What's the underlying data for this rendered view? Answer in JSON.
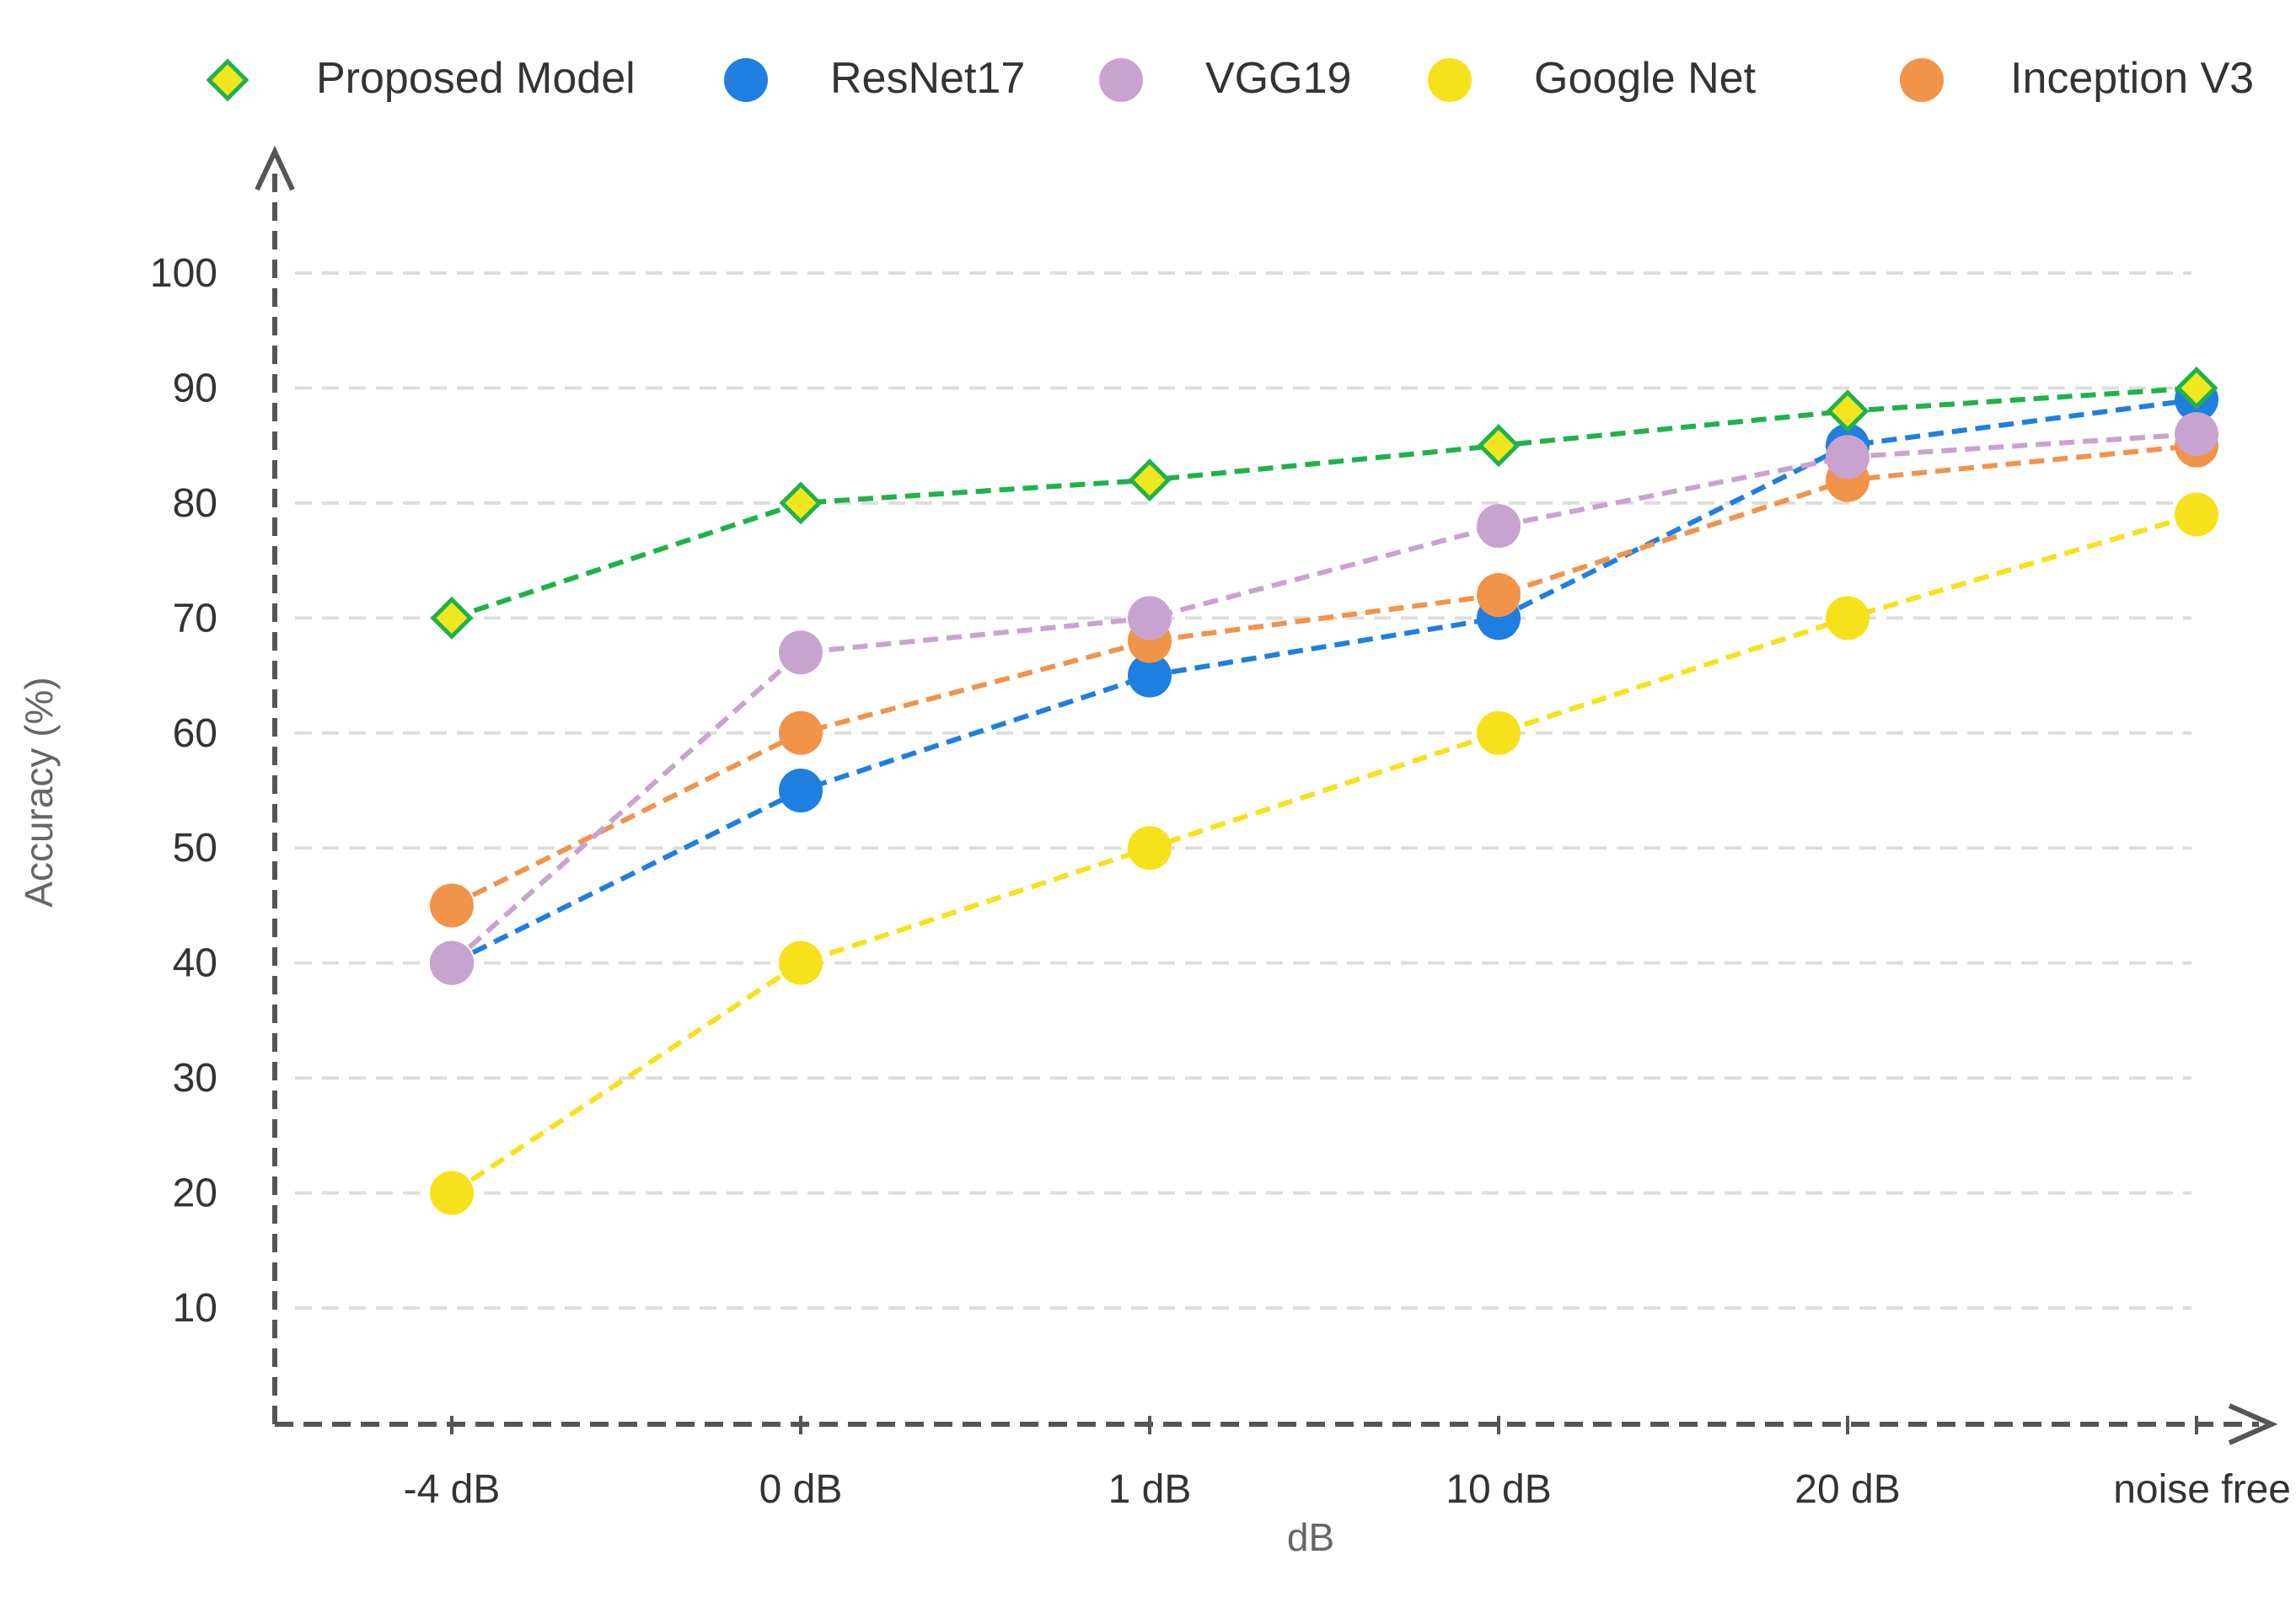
{
  "chart_data": {
    "type": "line",
    "title": "",
    "xlabel": "dB",
    "ylabel": "Accuracy (%)",
    "categories": [
      "-4 dB",
      "0 dB",
      "1 dB",
      "10 dB",
      "20 dB",
      "noise free"
    ],
    "yticks": [
      10,
      20,
      30,
      40,
      50,
      60,
      70,
      80,
      90,
      100
    ],
    "ylim": [
      0,
      110
    ],
    "grid": true,
    "legend_position": "top",
    "series": [
      {
        "name": "Proposed Model",
        "color": "#1fb24a",
        "fill": "#f2e61f",
        "marker": "diamond",
        "values": [
          70,
          80,
          82,
          85,
          88,
          90
        ]
      },
      {
        "name": "ResNet17",
        "color": "#1f7fe0",
        "marker": "circle",
        "values": [
          40,
          55,
          65,
          70,
          85,
          89
        ]
      },
      {
        "name": "VGG19",
        "color": "#c9a3d0",
        "marker": "circle",
        "values": [
          40,
          67,
          70,
          78,
          84,
          86
        ]
      },
      {
        "name": "Google Net",
        "color": "#f7e11a",
        "marker": "circle",
        "values": [
          20,
          40,
          50,
          60,
          70,
          79
        ]
      },
      {
        "name": "Inception V3",
        "color": "#f2934a",
        "marker": "circle",
        "values": [
          45,
          60,
          68,
          72,
          82,
          85
        ]
      }
    ]
  }
}
